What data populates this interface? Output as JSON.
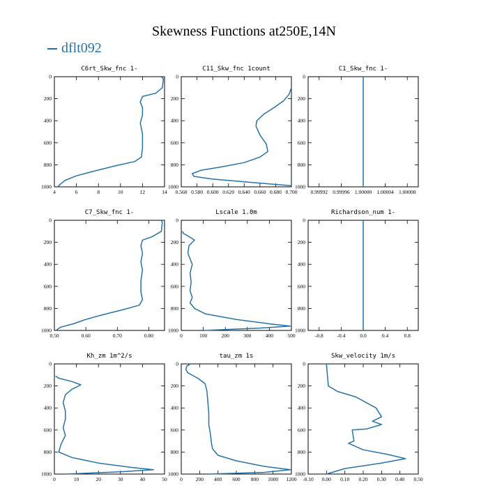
{
  "page": {
    "title": "Skewness Functions at250E,14N",
    "legend": {
      "label": "dflt092",
      "color": "#2472a8"
    }
  },
  "chart_data": [
    {
      "type": "line",
      "title": "C6rt_Skw_fnc   1-",
      "xlim": [
        4,
        14
      ],
      "xticks": [
        4,
        6,
        8,
        10,
        12,
        14
      ],
      "xtick_labels": [
        "4",
        "6",
        "8",
        "10",
        "12",
        "14"
      ],
      "ylim": [
        0,
        1000
      ],
      "yticks": [
        0,
        200,
        400,
        600,
        800,
        1000
      ],
      "series": [
        {
          "x": [
            13.7,
            13.9,
            13.8,
            13.2,
            12.0,
            11.8,
            12.0,
            12.0,
            11.8,
            12.0,
            12.0,
            11.9,
            11.3,
            9.5,
            7.5,
            6.0,
            5.0,
            4.6,
            4.3
          ],
          "y": [
            0,
            20,
            100,
            150,
            180,
            230,
            280,
            350,
            420,
            520,
            650,
            730,
            770,
            810,
            860,
            900,
            940,
            970,
            1000
          ]
        }
      ]
    },
    {
      "type": "line",
      "title": "C11_Skw_fnc   1count",
      "xlim": [
        0.56,
        0.7
      ],
      "xticks": [
        0.56,
        0.58,
        0.6,
        0.62,
        0.64,
        0.66,
        0.68,
        0.7
      ],
      "xtick_labels": [
        "0.560",
        "0.580",
        "0.600",
        "0.620",
        "0.640",
        "0.660",
        "0.680",
        "0.700"
      ],
      "ylim": [
        0,
        1000
      ],
      "yticks": [
        0,
        200,
        400,
        600,
        800,
        1000
      ],
      "series": [
        {
          "x": [
            0.7,
            0.697,
            0.69,
            0.678,
            0.665,
            0.656,
            0.655,
            0.66,
            0.668,
            0.67,
            0.66,
            0.64,
            0.61,
            0.585,
            0.574,
            0.576,
            0.6,
            0.65,
            0.7
          ],
          "y": [
            100,
            160,
            220,
            280,
            340,
            400,
            450,
            530,
            610,
            680,
            730,
            780,
            820,
            850,
            880,
            905,
            930,
            960,
            990
          ]
        }
      ]
    },
    {
      "type": "line",
      "title": "C1_Skw_fnc   1-",
      "xlim": [
        0.9999,
        1.0001
      ],
      "xticks": [
        0.99992,
        0.99996,
        1.0,
        1.00004,
        1.00008
      ],
      "xtick_labels": [
        "0.99992",
        "0.99996",
        "1.00000",
        "1.00004",
        "1.00008"
      ],
      "ylim": [
        0,
        1000
      ],
      "yticks": [
        0,
        200,
        400,
        600,
        800,
        1000
      ],
      "series": [
        {
          "x": [
            1.0,
            1.0
          ],
          "y": [
            0,
            1000
          ]
        }
      ]
    },
    {
      "type": "line",
      "title": "C7_Skw_fnc   1-",
      "xlim": [
        0.5,
        0.85
      ],
      "xticks": [
        0.5,
        0.6,
        0.7,
        0.8
      ],
      "xtick_labels": [
        "0.50",
        "0.60",
        "0.70",
        "0.80"
      ],
      "ylim": [
        0,
        1000
      ],
      "yticks": [
        0,
        200,
        400,
        600,
        800,
        1000
      ],
      "series": [
        {
          "x": [
            0.84,
            0.843,
            0.84,
            0.81,
            0.78,
            0.775,
            0.78,
            0.775,
            0.78,
            0.775,
            0.775,
            0.78,
            0.77,
            0.72,
            0.65,
            0.6,
            0.56,
            0.52,
            0.505
          ],
          "y": [
            0,
            20,
            100,
            150,
            180,
            230,
            300,
            380,
            450,
            550,
            650,
            720,
            770,
            810,
            860,
            900,
            940,
            970,
            1000
          ]
        }
      ]
    },
    {
      "type": "line",
      "title": "Lscale   1.0m",
      "xlim": [
        0,
        500
      ],
      "xticks": [
        0,
        100,
        200,
        300,
        400,
        500
      ],
      "xtick_labels": [
        "0",
        "100",
        "200",
        "300",
        "400",
        "500"
      ],
      "ylim": [
        0,
        1000
      ],
      "yticks": [
        0,
        200,
        400,
        600,
        800,
        1000
      ],
      "series": [
        {
          "x": [
            5,
            10,
            20,
            60,
            35,
            30,
            50,
            40,
            45,
            40,
            50,
            40,
            60,
            110,
            250,
            400,
            495,
            350,
            100
          ],
          "y": [
            100,
            120,
            130,
            180,
            230,
            300,
            400,
            480,
            560,
            640,
            700,
            750,
            800,
            850,
            900,
            940,
            960,
            980,
            1000
          ]
        }
      ]
    },
    {
      "type": "line",
      "title": "Richardson_num   1-",
      "xlim": [
        -1.0,
        1.0
      ],
      "xticks": [
        -0.8,
        -0.4,
        0.0,
        0.4,
        0.8
      ],
      "xtick_labels": [
        "-0.8",
        "-0.4",
        "0.0",
        "0.4",
        "0.8"
      ],
      "ylim": [
        0,
        1000
      ],
      "yticks": [
        0,
        200,
        400,
        600,
        800,
        1000
      ],
      "series": [
        {
          "x": [
            0.0,
            0.0
          ],
          "y": [
            0,
            1000
          ]
        }
      ]
    },
    {
      "type": "line",
      "title": "Kh_zm   1m^2/s",
      "xlim": [
        0,
        50
      ],
      "xticks": [
        0,
        10,
        20,
        30,
        40,
        50
      ],
      "xtick_labels": [
        "0",
        "10",
        "20",
        "30",
        "40",
        "50"
      ],
      "ylim": [
        0,
        1000
      ],
      "yticks": [
        0,
        200,
        400,
        600,
        800,
        1000
      ],
      "series": [
        {
          "x": [
            0.5,
            2,
            8,
            12,
            8,
            5,
            4,
            5,
            5,
            4,
            5,
            3,
            2,
            8,
            20,
            35,
            45,
            30,
            5
          ],
          "y": [
            110,
            130,
            160,
            190,
            230,
            280,
            350,
            430,
            500,
            580,
            650,
            730,
            800,
            850,
            900,
            940,
            960,
            980,
            1000
          ]
        }
      ]
    },
    {
      "type": "line",
      "title": "tau_zm   1s",
      "xlim": [
        0,
        1200
      ],
      "xticks": [
        0,
        200,
        400,
        600,
        800,
        1000,
        1200
      ],
      "xtick_labels": [
        "0",
        "200",
        "400",
        "600",
        "800",
        "1000",
        "1200"
      ],
      "ylim": [
        0,
        1000
      ],
      "yticks": [
        0,
        200,
        400,
        600,
        800,
        1000
      ],
      "series": [
        {
          "x": [
            100,
            60,
            50,
            70,
            180,
            260,
            280,
            290,
            300,
            300,
            320,
            330,
            340,
            400,
            600,
            900,
            1190,
            900,
            300
          ],
          "y": [
            0,
            20,
            50,
            80,
            130,
            180,
            250,
            350,
            450,
            550,
            650,
            720,
            770,
            830,
            880,
            930,
            960,
            985,
            1000
          ]
        }
      ]
    },
    {
      "type": "line",
      "title": "Skw_velocity   1m/s",
      "xlim": [
        -0.1,
        0.5
      ],
      "xticks": [
        -0.1,
        0.0,
        0.1,
        0.2,
        0.3,
        0.4,
        0.5
      ],
      "xtick_labels": [
        "-0.10",
        "0.00",
        "0.10",
        "0.20",
        "0.30",
        "0.40",
        "0.50"
      ],
      "ylim": [
        0,
        1000
      ],
      "yticks": [
        0,
        200,
        400,
        600,
        800,
        1000
      ],
      "series": [
        {
          "x": [
            0.0,
            0.005,
            0.01,
            0.06,
            0.16,
            0.27,
            0.3,
            0.25,
            0.3,
            0.22,
            0.14,
            0.15,
            0.12,
            0.2,
            0.33,
            0.43,
            0.3,
            0.1,
            0.0
          ],
          "y": [
            0,
            100,
            200,
            250,
            300,
            400,
            480,
            520,
            550,
            590,
            600,
            700,
            720,
            780,
            820,
            860,
            900,
            950,
            1000
          ]
        }
      ]
    }
  ]
}
